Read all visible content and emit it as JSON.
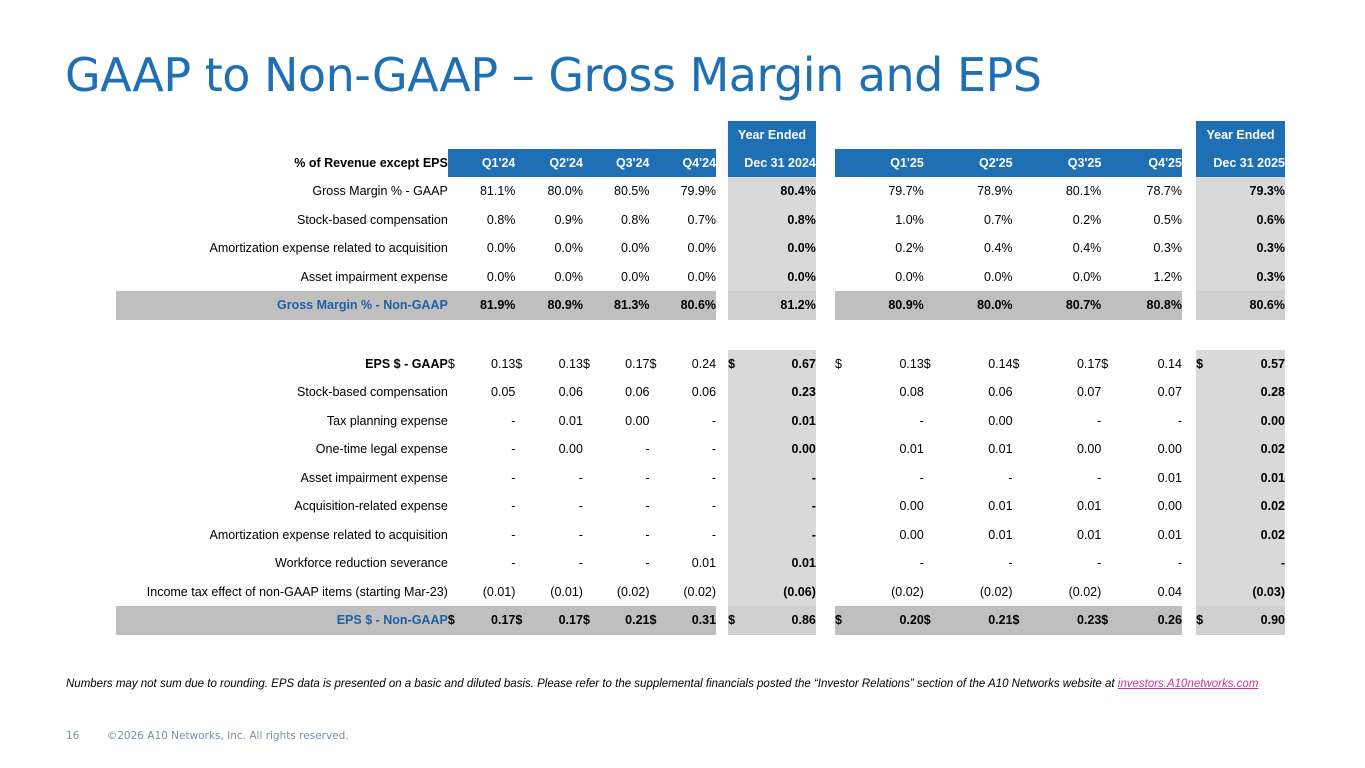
{
  "title": "GAAP to Non-GAAP – Gross Margin and EPS",
  "table": {
    "year_ended": "Year Ended",
    "header_label": "% of Revenue except EPS",
    "quarters_2024": [
      "Q1'24",
      "Q2'24",
      "Q3'24",
      "Q4'24"
    ],
    "year_2024": "Dec 31 2024",
    "quarters_2025": [
      "Q1'25",
      "Q2'25",
      "Q3'25",
      "Q4'25"
    ],
    "year_2025": "Dec 31 2025",
    "dollar": "$",
    "gross_margin": [
      {
        "label": "Gross Margin % - GAAP",
        "v": [
          "81.1%",
          "80.0%",
          "80.5%",
          "79.9%"
        ],
        "y24": "80.4%",
        "w": [
          "79.7%",
          "78.9%",
          "80.1%",
          "78.7%"
        ],
        "y25": "79.3%"
      },
      {
        "label": "Stock-based compensation",
        "v": [
          "0.8%",
          "0.9%",
          "0.8%",
          "0.7%"
        ],
        "y24": "0.8%",
        "w": [
          "1.0%",
          "0.7%",
          "0.2%",
          "0.5%"
        ],
        "y25": "0.6%"
      },
      {
        "label": "Amortization expense related to acquisition",
        "v": [
          "0.0%",
          "0.0%",
          "0.0%",
          "0.0%"
        ],
        "y24": "0.0%",
        "w": [
          "0.2%",
          "0.4%",
          "0.4%",
          "0.3%"
        ],
        "y25": "0.3%"
      },
      {
        "label": "Asset impairment expense",
        "v": [
          "0.0%",
          "0.0%",
          "0.0%",
          "0.0%"
        ],
        "y24": "0.0%",
        "w": [
          "0.0%",
          "0.0%",
          "0.0%",
          "1.2%"
        ],
        "y25": "0.3%"
      }
    ],
    "gross_margin_non_gaap": {
      "label": "Gross Margin % - Non-GAAP",
      "v": [
        "81.9%",
        "80.9%",
        "81.3%",
        "80.6%"
      ],
      "y24": "81.2%",
      "w": [
        "80.9%",
        "80.0%",
        "80.7%",
        "80.8%"
      ],
      "y25": "80.6%"
    },
    "eps_gaap": {
      "label": "EPS $ - GAAP",
      "v": [
        "0.13",
        "0.13",
        "0.17",
        "0.24"
      ],
      "y24": "0.67",
      "w": [
        "0.13",
        "0.14",
        "0.17",
        "0.14"
      ],
      "y25": "0.57"
    },
    "eps_adjustments": [
      {
        "label": "Stock-based compensation",
        "v": [
          "0.05",
          "0.06",
          "0.06",
          "0.06"
        ],
        "y24": "0.23",
        "w": [
          "0.08",
          "0.06",
          "0.07",
          "0.07"
        ],
        "y25": "0.28"
      },
      {
        "label": "Tax planning expense",
        "v": [
          "-",
          "0.01",
          "0.00",
          "-"
        ],
        "y24": "0.01",
        "w": [
          "-",
          "0.00",
          "-",
          "-"
        ],
        "y25": "0.00"
      },
      {
        "label": "One-time legal expense",
        "v": [
          "-",
          "0.00",
          "-",
          "-"
        ],
        "y24": "0.00",
        "w": [
          "0.01",
          "0.01",
          "0.00",
          "0.00"
        ],
        "y25": "0.02"
      },
      {
        "label": "Asset impairment expense",
        "v": [
          "-",
          "-",
          "-",
          "-"
        ],
        "y24": "-",
        "w": [
          "-",
          "-",
          "-",
          "0.01"
        ],
        "y25": "0.01"
      },
      {
        "label": "Acquisition-related expense",
        "v": [
          "-",
          "-",
          "-",
          "-"
        ],
        "y24": "-",
        "w": [
          "0.00",
          "0.01",
          "0.01",
          "0.00"
        ],
        "y25": "0.02"
      },
      {
        "label": "Amortization expense related to acquisition",
        "v": [
          "-",
          "-",
          "-",
          "-"
        ],
        "y24": "-",
        "w": [
          "0.00",
          "0.01",
          "0.01",
          "0.01"
        ],
        "y25": "0.02"
      },
      {
        "label": "Workforce reduction severance",
        "v": [
          "-",
          "-",
          "-",
          "0.01"
        ],
        "y24": "0.01",
        "w": [
          "-",
          "-",
          "-",
          "-"
        ],
        "y25": "-"
      },
      {
        "label": "Income tax effect of non-GAAP items (starting Mar-23)",
        "v": [
          "(0.01)",
          "(0.01)",
          "(0.02)",
          "(0.02)"
        ],
        "y24": "(0.06)",
        "w": [
          "(0.02)",
          "(0.02)",
          "(0.02)",
          "0.04"
        ],
        "y25": "(0.03)"
      }
    ],
    "eps_non_gaap": {
      "label": "EPS $ - Non-GAAP",
      "v": [
        "0.17",
        "0.17",
        "0.21",
        "0.31"
      ],
      "y24": "0.86",
      "w": [
        "0.20",
        "0.21",
        "0.23",
        "0.26"
      ],
      "y25": "0.90"
    }
  },
  "footnote": {
    "text": "Numbers may not sum due to rounding.  EPS data is presented on a basic and diluted basis.  Please refer to the supplemental financials posted the “Investor Relations” section of the A10 Networks website at ",
    "link": "investors.A10networks.com"
  },
  "footer": {
    "page_number": "16",
    "copyright": "©2026 A10 Networks, Inc. All rights reserved."
  },
  "colors": {
    "accent": "#1f6fb5",
    "highlight_row": "#bfbfbf",
    "year_column": "#d9d9d9",
    "link": "#cc3399"
  }
}
